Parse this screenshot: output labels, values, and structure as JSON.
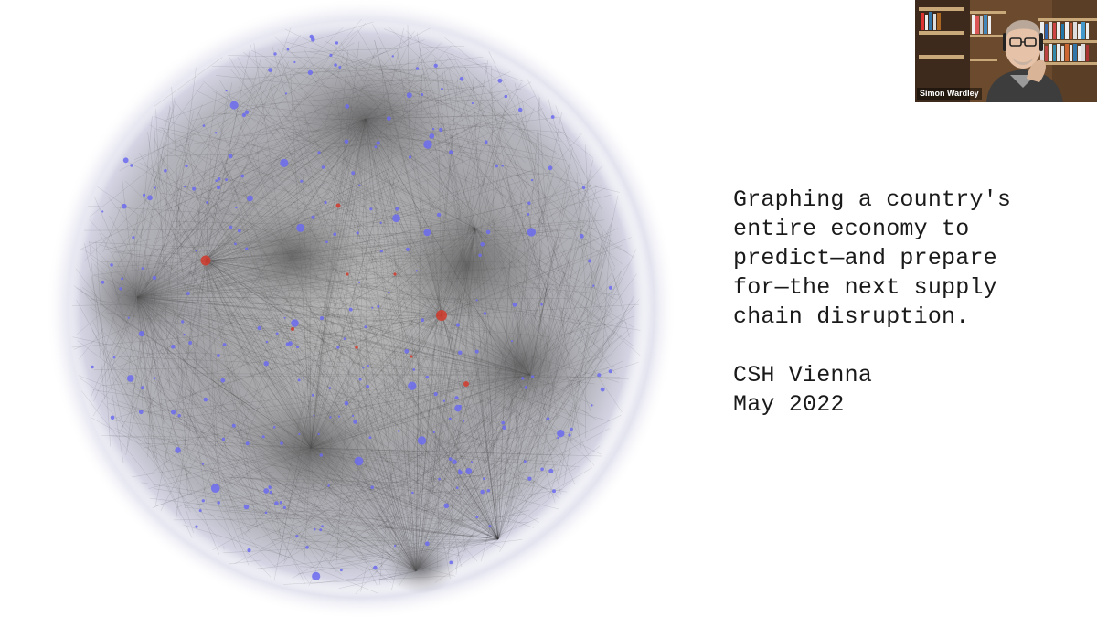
{
  "slide": {
    "title_lines": [
      "Graphing a country's",
      "entire economy to",
      "predict—and prepare",
      "for—the next supply",
      "chain disruption."
    ],
    "venue": "CSH Vienna",
    "date": "May 2022"
  },
  "video": {
    "participant_name": "Simon Wardley"
  },
  "colors": {
    "background": "#ffffff",
    "text": "#1a1a1a",
    "edge_gray": "#4a4a4a",
    "node_blue": "#6b6bf0",
    "node_red": "#d23a2a"
  }
}
